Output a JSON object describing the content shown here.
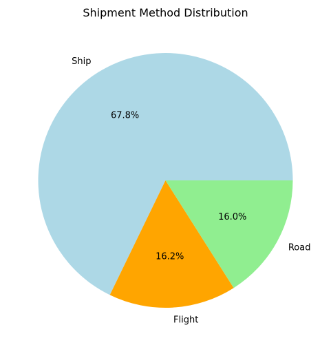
{
  "chart_data": {
    "type": "pie",
    "title": "Shipment Method Distribution",
    "slices": [
      {
        "label": "Ship",
        "value": 67.8,
        "pct_label": "67.8%",
        "color": "#add8e6"
      },
      {
        "label": "Flight",
        "value": 16.2,
        "pct_label": "16.2%",
        "color": "#ffa500"
      },
      {
        "label": "Road",
        "value": 16.0,
        "pct_label": "16.0%",
        "color": "#90ee90"
      }
    ],
    "start_angle_deg": 0,
    "direction": "counterclockwise",
    "legend": "none"
  }
}
